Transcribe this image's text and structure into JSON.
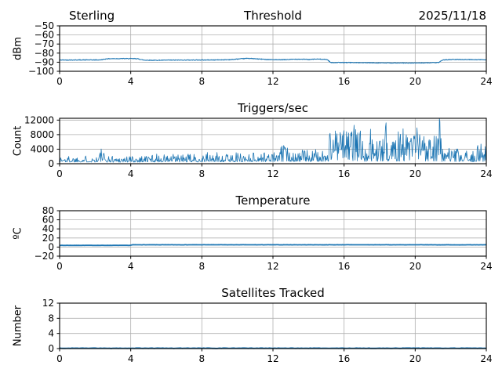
{
  "style": {
    "background": "#ffffff",
    "line_color": "#1f77b4",
    "grid_color": "#b0b0b0",
    "axis_color": "#000000",
    "text_color": "#000000"
  },
  "header": {
    "left": "Sterling",
    "right": "2025/11/18"
  },
  "chart_data": [
    {
      "type": "line",
      "title": "Threshold",
      "ylabel": "dBm",
      "xlabel": "",
      "xlim": [
        0,
        24
      ],
      "ylim": [
        -100,
        -50
      ],
      "xtick_vals": [
        0,
        4,
        8,
        12,
        16,
        20,
        24
      ],
      "xtick_labels": [
        "0",
        "4",
        "8",
        "12",
        "16",
        "20",
        "24"
      ],
      "ytick_vals": [
        -100,
        -90,
        -80,
        -70,
        -60,
        -50
      ],
      "ytick_labels": [
        "−100",
        "−90",
        "−80",
        "−70",
        "−60",
        "−50"
      ],
      "grid": true,
      "legend": false,
      "series": {
        "render": "noisy-line",
        "line_width": 1.1,
        "step": 0.02,
        "noise": 0.35,
        "seed": 42,
        "keypoints": [
          [
            0,
            -87.6
          ],
          [
            1.2,
            -87.5
          ],
          [
            2.3,
            -87.5
          ],
          [
            2.65,
            -86.2
          ],
          [
            3.6,
            -86.0
          ],
          [
            4.35,
            -86.1
          ],
          [
            4.75,
            -87.7
          ],
          [
            5.3,
            -87.9
          ],
          [
            6.2,
            -87.7
          ],
          [
            7.6,
            -87.6
          ],
          [
            8.8,
            -87.5
          ],
          [
            9.6,
            -87.2
          ],
          [
            10.25,
            -86.2
          ],
          [
            10.6,
            -85.7
          ],
          [
            11.1,
            -86.4
          ],
          [
            11.7,
            -87.0
          ],
          [
            12.3,
            -87.4
          ],
          [
            12.8,
            -87.1
          ],
          [
            13.3,
            -86.6
          ],
          [
            13.8,
            -86.8
          ],
          [
            14.05,
            -87.1
          ],
          [
            14.35,
            -86.6
          ],
          [
            14.75,
            -86.7
          ],
          [
            15.05,
            -87.1
          ],
          [
            15.25,
            -90.4
          ],
          [
            16.2,
            -90.3
          ],
          [
            17.3,
            -90.6
          ],
          [
            18.5,
            -90.8
          ],
          [
            19.6,
            -90.9
          ],
          [
            20.5,
            -90.7
          ],
          [
            21.3,
            -90.4
          ],
          [
            21.6,
            -87.4
          ],
          [
            22.2,
            -87.0
          ],
          [
            23.0,
            -87.1
          ],
          [
            24,
            -87.3
          ]
        ]
      }
    },
    {
      "type": "line",
      "title": "Triggers/sec",
      "ylabel": "Count",
      "xlabel": "",
      "xlim": [
        0,
        24
      ],
      "ylim": [
        0,
        12500
      ],
      "xtick_vals": [
        0,
        4,
        8,
        12,
        16,
        20,
        24
      ],
      "xtick_labels": [
        "0",
        "4",
        "8",
        "12",
        "16",
        "20",
        "24"
      ],
      "ytick_vals": [
        0,
        4000,
        8000,
        12000
      ],
      "ytick_labels": [
        "0",
        "4000",
        "8000",
        "12000"
      ],
      "grid": true,
      "legend": false,
      "series": {
        "render": "spiky",
        "line_width": 0.8,
        "step": 0.03,
        "seed": 1337,
        "segments": [
          [
            0,
            2.2,
            450,
            2300,
            2.2
          ],
          [
            2.2,
            2.5,
            500,
            3800,
            1.8
          ],
          [
            2.5,
            4.6,
            420,
            2400,
            2.2
          ],
          [
            4.6,
            8,
            480,
            2700,
            2.2
          ],
          [
            8,
            10.5,
            520,
            3100,
            2.2
          ],
          [
            10.5,
            12.4,
            550,
            3300,
            2.1
          ],
          [
            12.4,
            13,
            600,
            5000,
            1.7
          ],
          [
            13,
            15.15,
            620,
            3900,
            2
          ],
          [
            15.15,
            16.4,
            800,
            9200,
            1.25
          ],
          [
            16.4,
            17.1,
            750,
            9800,
            1.5
          ],
          [
            17.1,
            18.3,
            650,
            7000,
            1.7
          ],
          [
            18.3,
            19.4,
            700,
            10800,
            1.7
          ],
          [
            19.4,
            20.3,
            650,
            8800,
            1.7
          ],
          [
            20.3,
            21.25,
            700,
            9300,
            1.5
          ],
          [
            21.25,
            21.5,
            900,
            12300,
            1.2
          ],
          [
            21.5,
            22.4,
            550,
            4300,
            2
          ],
          [
            22.4,
            23.3,
            500,
            3500,
            2
          ],
          [
            23.3,
            24,
            600,
            5400,
            1.9
          ]
        ],
        "spikes": [
          [
            2.35,
            4050
          ],
          [
            12.6,
            5000
          ],
          [
            15.5,
            9000
          ],
          [
            16.0,
            9100
          ],
          [
            16.55,
            10600
          ],
          [
            17.5,
            9500
          ],
          [
            18.35,
            11250
          ],
          [
            19.05,
            8800
          ],
          [
            20.1,
            9900
          ],
          [
            21.35,
            12400
          ],
          [
            23.7,
            5400
          ]
        ]
      }
    },
    {
      "type": "line",
      "title": "Temperature",
      "ylabel": "ºC",
      "xlabel": "",
      "xlim": [
        0,
        24
      ],
      "ylim": [
        -20,
        80
      ],
      "xtick_vals": [
        0,
        4,
        8,
        12,
        16,
        20,
        24
      ],
      "xtick_labels": [
        "0",
        "4",
        "8",
        "12",
        "16",
        "20",
        "24"
      ],
      "ytick_vals": [
        -20,
        0,
        20,
        40,
        60,
        80
      ],
      "ytick_labels": [
        "−20",
        "0",
        "20",
        "40",
        "60",
        "80"
      ],
      "grid": true,
      "legend": false,
      "series": {
        "render": "noisy-line",
        "line_width": 1.8,
        "step": 0.05,
        "noise": 0.15,
        "seed": 7,
        "keypoints": [
          [
            0,
            3.7
          ],
          [
            3.95,
            3.7
          ],
          [
            4.1,
            5.0
          ],
          [
            21.0,
            5.0
          ],
          [
            21.3,
            4.8
          ],
          [
            21.8,
            5.0
          ],
          [
            22.3,
            4.8
          ],
          [
            23.1,
            5.0
          ],
          [
            24,
            5.0
          ]
        ]
      }
    },
    {
      "type": "line",
      "title": "Satellites Tracked",
      "ylabel": "Number",
      "xlabel": "",
      "xlim": [
        0,
        24
      ],
      "ylim": [
        0,
        12
      ],
      "xtick_vals": [
        0,
        4,
        8,
        12,
        16,
        20,
        24
      ],
      "xtick_labels": [
        "0",
        "4",
        "8",
        "12",
        "16",
        "20",
        "24"
      ],
      "ytick_vals": [
        0,
        4,
        8,
        12
      ],
      "ytick_labels": [
        "0",
        "4",
        "8",
        "12"
      ],
      "grid": true,
      "legend": false,
      "series": {
        "render": "noisy-line",
        "line_width": 1.8,
        "step": 0.1,
        "noise": 0.05,
        "seed": 4,
        "keypoints": [
          [
            0,
            0.1
          ],
          [
            24,
            0.1
          ]
        ]
      }
    }
  ]
}
